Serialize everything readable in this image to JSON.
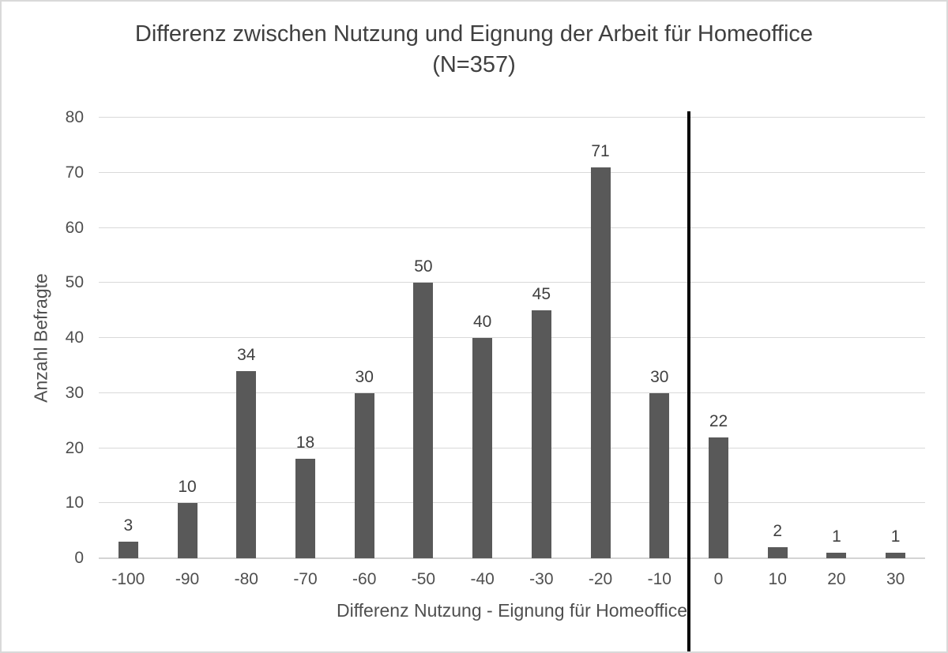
{
  "chart_data": {
    "type": "bar",
    "title": "Differenz zwischen Nutzung und Eignung der Arbeit für Homeoffice (N=357)",
    "xlabel": "Differenz Nutzung - Eignung für Homeoffice",
    "ylabel": "Anzahl Befragte",
    "categories": [
      "-100",
      "-90",
      "-80",
      "-70",
      "-60",
      "-50",
      "-40",
      "-30",
      "-20",
      "-10",
      "0",
      "10",
      "20",
      "30"
    ],
    "values": [
      3,
      10,
      34,
      18,
      30,
      50,
      40,
      45,
      71,
      30,
      22,
      2,
      1,
      1
    ],
    "n_total": 357,
    "ylim": [
      0,
      80
    ],
    "yticks": [
      0,
      10,
      20,
      30,
      40,
      50,
      60,
      70,
      80
    ],
    "grid": true,
    "legend": "none",
    "bar_color": "#595959",
    "gridline_color": "#d9d9d9",
    "title_color": "#404040",
    "axis_text_color": "#4f4f4f",
    "reference_line": {
      "after_category": "-10",
      "color": "#000000",
      "description": "vertical black divider between -10 and 0 extending below axis"
    }
  }
}
